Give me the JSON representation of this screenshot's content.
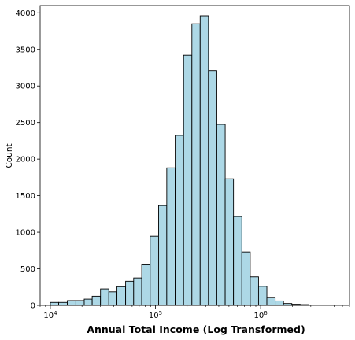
{
  "chart_data": {
    "type": "bar",
    "xlabel": "Annual Total Income (Log Transformed)",
    "ylabel": "Count",
    "x_scale": "log",
    "xlim": [
      8000,
      7000000
    ],
    "ylim": [
      0,
      4100
    ],
    "y_ticks": [
      0,
      500,
      1000,
      1500,
      2000,
      2500,
      3000,
      3500,
      4000
    ],
    "x_tick_labels": [
      {
        "base": "10",
        "exp": "4",
        "value": 10000
      },
      {
        "base": "10",
        "exp": "5",
        "value": 100000
      },
      {
        "base": "10",
        "exp": "6",
        "value": 1000000
      }
    ],
    "bar_color": "#add8e6",
    "edge_color": "#000000",
    "bins": [
      {
        "x0": 10000,
        "x1": 12000,
        "count": 40
      },
      {
        "x0": 12000,
        "x1": 14500,
        "count": 40
      },
      {
        "x0": 14500,
        "x1": 17500,
        "count": 65
      },
      {
        "x0": 17500,
        "x1": 21000,
        "count": 65
      },
      {
        "x0": 21000,
        "x1": 25000,
        "count": 85
      },
      {
        "x0": 25000,
        "x1": 30000,
        "count": 125
      },
      {
        "x0": 30000,
        "x1": 36000,
        "count": 225
      },
      {
        "x0": 36000,
        "x1": 43000,
        "count": 185
      },
      {
        "x0": 43000,
        "x1": 52000,
        "count": 255
      },
      {
        "x0": 52000,
        "x1": 62000,
        "count": 330
      },
      {
        "x0": 62000,
        "x1": 74000,
        "count": 375
      },
      {
        "x0": 74000,
        "x1": 89000,
        "count": 555
      },
      {
        "x0": 89000,
        "x1": 107000,
        "count": 945
      },
      {
        "x0": 107000,
        "x1": 128000,
        "count": 1365
      },
      {
        "x0": 128000,
        "x1": 154000,
        "count": 1880
      },
      {
        "x0": 154000,
        "x1": 185000,
        "count": 2325
      },
      {
        "x0": 185000,
        "x1": 222000,
        "count": 3420
      },
      {
        "x0": 222000,
        "x1": 266000,
        "count": 3850
      },
      {
        "x0": 266000,
        "x1": 319000,
        "count": 3960
      },
      {
        "x0": 319000,
        "x1": 383000,
        "count": 3210
      },
      {
        "x0": 383000,
        "x1": 460000,
        "count": 2475
      },
      {
        "x0": 460000,
        "x1": 552000,
        "count": 1730
      },
      {
        "x0": 552000,
        "x1": 663000,
        "count": 1215
      },
      {
        "x0": 663000,
        "x1": 796000,
        "count": 730
      },
      {
        "x0": 796000,
        "x1": 955000,
        "count": 390
      },
      {
        "x0": 955000,
        "x1": 1146000,
        "count": 260
      },
      {
        "x0": 1146000,
        "x1": 1375000,
        "count": 110
      },
      {
        "x0": 1375000,
        "x1": 1650000,
        "count": 60
      },
      {
        "x0": 1650000,
        "x1": 1980000,
        "count": 25
      },
      {
        "x0": 1980000,
        "x1": 2376000,
        "count": 15
      },
      {
        "x0": 2376000,
        "x1": 2851000,
        "count": 10
      }
    ]
  }
}
